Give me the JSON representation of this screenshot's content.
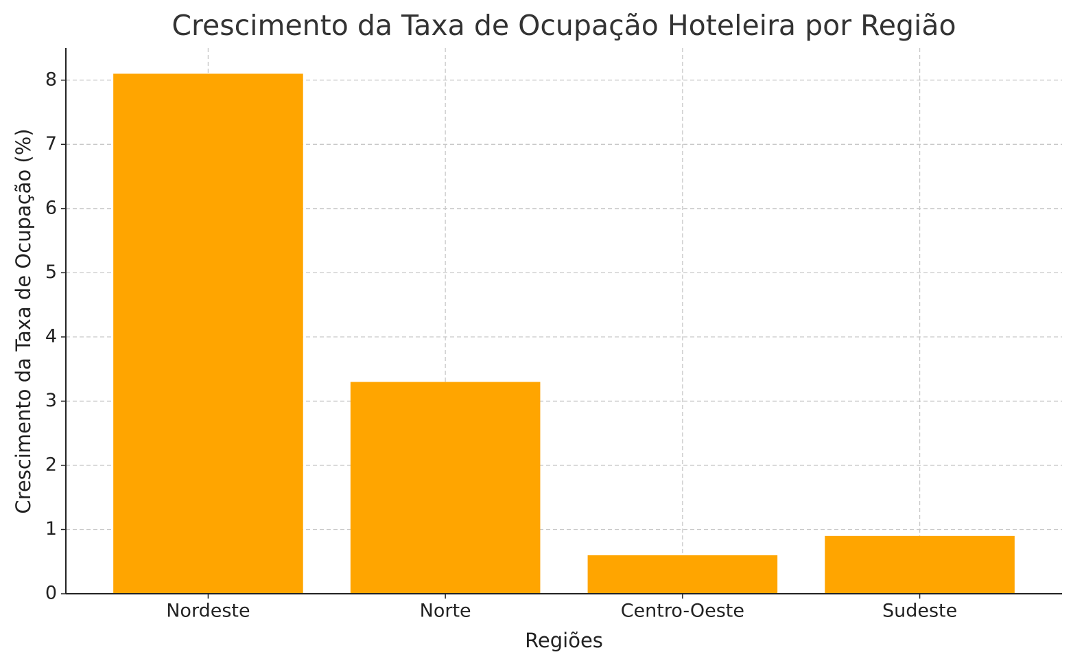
{
  "chart_data": {
    "type": "bar",
    "title": "Crescimento da Taxa de Ocupação Hoteleira por Região",
    "x_label": "Regiões",
    "y_label": "Crescimento da Taxa de Ocupação (%)",
    "categories": [
      "Nordeste",
      "Norte",
      "Centro-Oeste",
      "Sudeste"
    ],
    "values": [
      8.1,
      3.3,
      0.6,
      0.9
    ],
    "color": "#ffa500",
    "ylim": [
      0,
      8.5
    ],
    "yticks": [
      0,
      1,
      2,
      3,
      4,
      5,
      6,
      7,
      8
    ],
    "grid": true
  }
}
